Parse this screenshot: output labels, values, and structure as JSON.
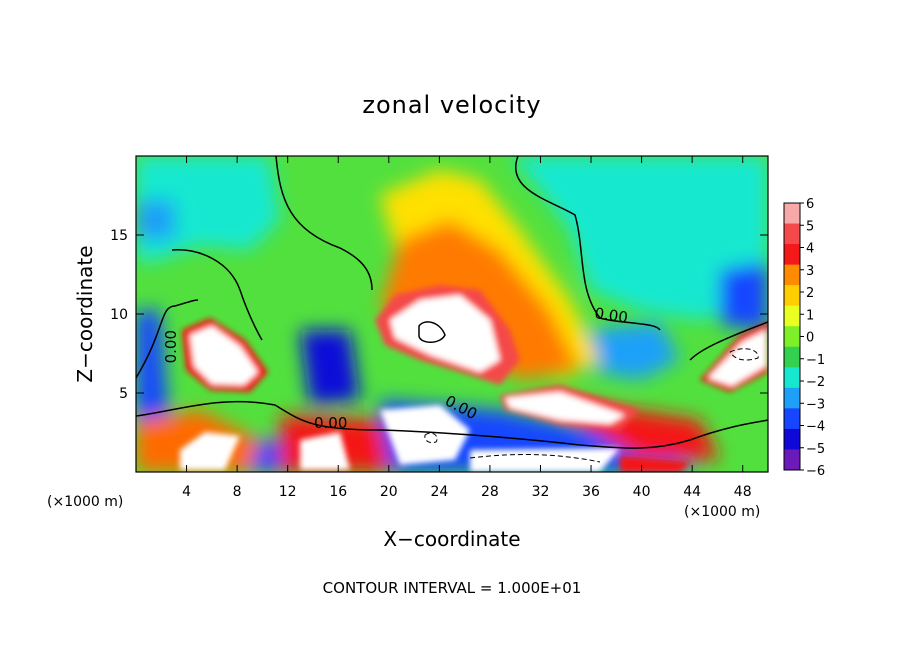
{
  "chart_data": {
    "type": "heatmap",
    "title": "zonal velocity",
    "xlabel": "X−coordinate",
    "ylabel": "Z−coordinate",
    "x_unit_left": "(×1000 m)",
    "x_unit_right": "(×1000 m)",
    "footer": "CONTOUR INTERVAL = 1.000E+01",
    "xlim": [
      0,
      50
    ],
    "ylim": [
      0,
      20
    ],
    "x_ticks": [
      4,
      8,
      12,
      16,
      20,
      24,
      28,
      32,
      36,
      40,
      44,
      48
    ],
    "y_ticks": [
      5,
      10,
      15
    ],
    "colorbar": {
      "ticks": [
        "6",
        "5",
        "4",
        "3",
        "2",
        "1",
        "0",
        "−1",
        "−2",
        "−3",
        "−4",
        "−5",
        "−6"
      ],
      "range": [
        -6,
        6
      ],
      "colors_top_to_bottom": [
        "#f7a8a8",
        "#f4484a",
        "#f41818",
        "#ff8c00",
        "#ffce00",
        "#e8ff20",
        "#7ef028",
        "#34d050",
        "#16e8d0",
        "#1ea0f8",
        "#1646ff",
        "#1008d8",
        "#6a1ab8"
      ]
    },
    "contour_labels": [
      "0.00",
      "0.00",
      "0.00",
      "0.00"
    ]
  }
}
